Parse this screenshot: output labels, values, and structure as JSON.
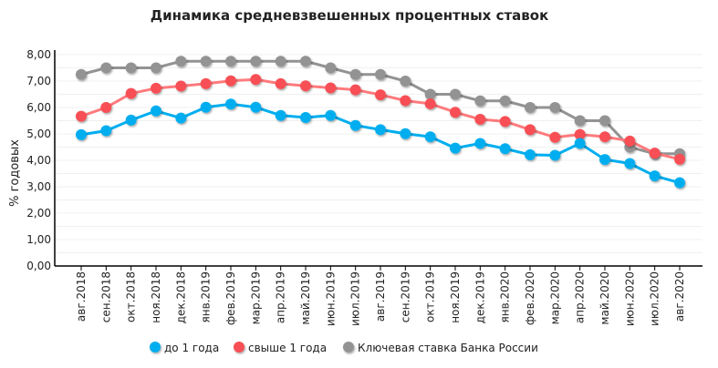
{
  "chart_data": {
    "type": "line",
    "title": "Динамика средневзвешенных процентных ставок",
    "xlabel": "",
    "ylabel": "% годовых",
    "ylim": [
      0,
      8
    ],
    "yticks": [
      "0,00",
      "1,00",
      "2,00",
      "3,00",
      "4,00",
      "5,00",
      "6,00",
      "7,00",
      "8,00"
    ],
    "grid": true,
    "legend_position": "bottom",
    "categories": [
      "авг.2018",
      "сен.2018",
      "окт.2018",
      "ноя.2018",
      "дек.2018",
      "янв.2019",
      "фев.2019",
      "мар.2019",
      "апр.2019",
      "май.2019",
      "июн.2019",
      "июл.2019",
      "авг.2019",
      "сен.2019",
      "окт.2019",
      "ноя.2019",
      "дек.2019",
      "янв.2020",
      "фев.2020",
      "мар.2020",
      "апр.2020",
      "май.2020",
      "июн.2020",
      "июл.2020",
      "авг.2020"
    ],
    "series": [
      {
        "name": "до 1 года",
        "color": "#00aeef",
        "values": [
          4.97,
          5.12,
          5.52,
          5.87,
          5.6,
          6.01,
          6.13,
          6.01,
          5.7,
          5.62,
          5.7,
          5.32,
          5.16,
          5.01,
          4.89,
          4.46,
          4.64,
          4.44,
          4.21,
          4.19,
          4.64,
          4.03,
          3.88,
          3.41,
          3.15
        ]
      },
      {
        "name": "свыше 1 года",
        "color": "#f75054",
        "values": [
          5.67,
          6.0,
          6.53,
          6.73,
          6.81,
          6.9,
          7.01,
          7.06,
          6.9,
          6.82,
          6.74,
          6.67,
          6.48,
          6.26,
          6.14,
          5.82,
          5.55,
          5.47,
          5.16,
          4.87,
          4.98,
          4.89,
          4.73,
          4.27,
          4.04
        ]
      },
      {
        "name": "Ключевая ставка Банка России",
        "color": "#939393",
        "values": [
          7.25,
          7.5,
          7.5,
          7.5,
          7.75,
          7.75,
          7.75,
          7.75,
          7.75,
          7.75,
          7.5,
          7.25,
          7.25,
          7.0,
          6.5,
          6.5,
          6.25,
          6.25,
          6.0,
          6.0,
          5.5,
          5.5,
          4.5,
          4.25,
          4.25
        ]
      }
    ]
  }
}
